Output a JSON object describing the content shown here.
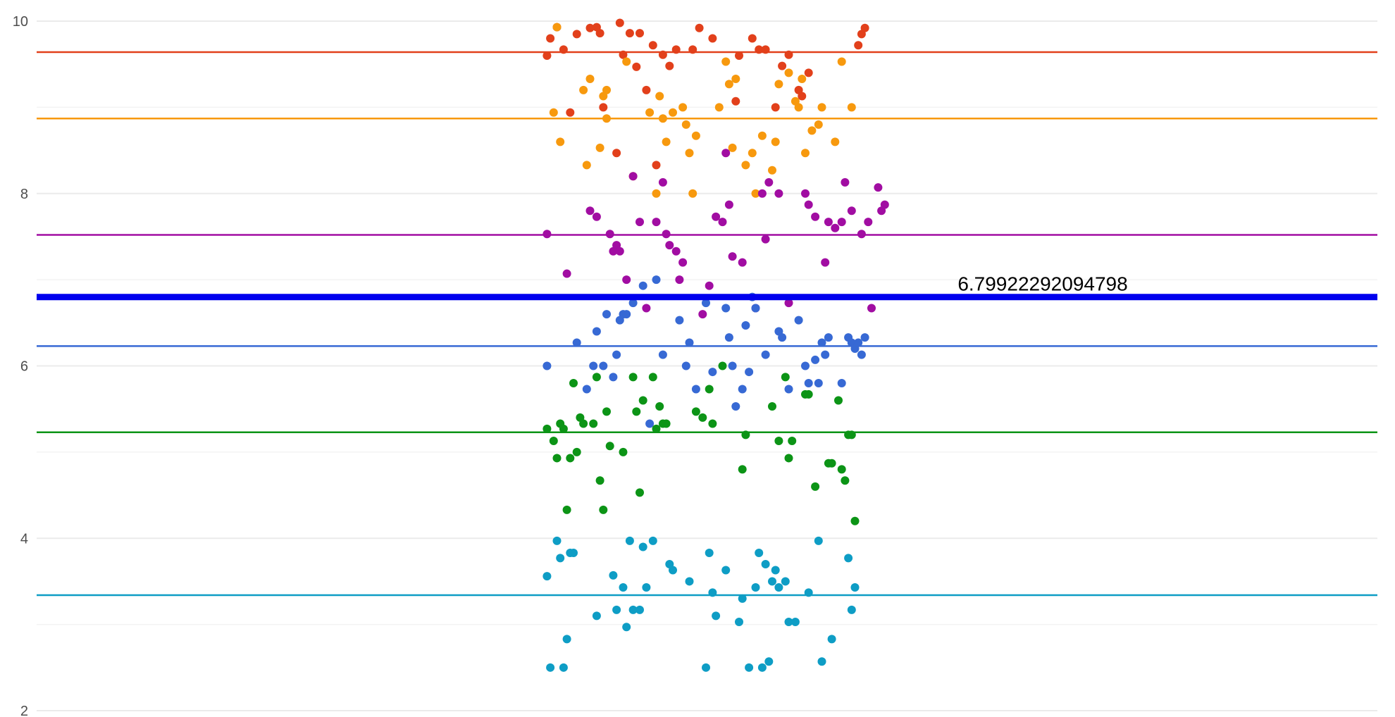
{
  "chart_data": {
    "type": "scatter",
    "title": "",
    "xlabel": "",
    "ylabel": "",
    "ylim": [
      2,
      10
    ],
    "y_ticks": [
      "2",
      "4",
      "6",
      "8",
      "10"
    ],
    "grid": true,
    "legend": "none",
    "reference_line": {
      "value": 6.79922292094798,
      "label": "6.79922292094798",
      "color": "#0000ee"
    },
    "series": [
      {
        "color": "#e2401b",
        "mean": 9.64,
        "points": [
          [
            -0.48,
            9.6
          ],
          [
            -0.47,
            9.8
          ],
          [
            -0.45,
            9.93
          ],
          [
            -0.43,
            9.67
          ],
          [
            -0.41,
            8.94
          ],
          [
            -0.39,
            9.85
          ],
          [
            -0.35,
            9.92
          ],
          [
            -0.33,
            9.93
          ],
          [
            -0.32,
            9.86
          ],
          [
            -0.31,
            9.0
          ],
          [
            -0.27,
            8.47
          ],
          [
            -0.26,
            9.98
          ],
          [
            -0.25,
            9.61
          ],
          [
            -0.23,
            9.86
          ],
          [
            -0.21,
            9.47
          ],
          [
            -0.2,
            9.86
          ],
          [
            -0.18,
            9.2
          ],
          [
            -0.16,
            9.72
          ],
          [
            -0.15,
            8.33
          ],
          [
            -0.13,
            9.61
          ],
          [
            -0.11,
            9.48
          ],
          [
            -0.09,
            9.67
          ],
          [
            -0.04,
            9.67
          ],
          [
            -0.02,
            9.92
          ],
          [
            0.02,
            9.8
          ],
          [
            0.09,
            9.07
          ],
          [
            0.1,
            9.6
          ],
          [
            0.14,
            9.8
          ],
          [
            0.16,
            9.67
          ],
          [
            0.18,
            9.67
          ],
          [
            0.21,
            9.0
          ],
          [
            0.23,
            9.48
          ],
          [
            0.25,
            9.61
          ],
          [
            0.28,
            9.2
          ],
          [
            0.29,
            9.13
          ],
          [
            0.31,
            9.4
          ],
          [
            0.46,
            9.72
          ],
          [
            0.47,
            9.85
          ],
          [
            0.48,
            9.92
          ]
        ]
      },
      {
        "color": "#f7990e",
        "mean": 8.87,
        "points": [
          [
            -0.45,
            9.93
          ],
          [
            -0.46,
            8.94
          ],
          [
            -0.44,
            8.6
          ],
          [
            -0.37,
            9.2
          ],
          [
            -0.36,
            8.33
          ],
          [
            -0.35,
            9.33
          ],
          [
            -0.32,
            8.53
          ],
          [
            -0.31,
            9.13
          ],
          [
            -0.3,
            9.2
          ],
          [
            -0.3,
            8.87
          ],
          [
            -0.24,
            9.53
          ],
          [
            -0.22,
            8.2
          ],
          [
            -0.17,
            8.94
          ],
          [
            -0.15,
            8.0
          ],
          [
            -0.14,
            9.13
          ],
          [
            -0.13,
            8.87
          ],
          [
            -0.12,
            8.6
          ],
          [
            -0.1,
            8.94
          ],
          [
            -0.07,
            9.0
          ],
          [
            -0.06,
            8.8
          ],
          [
            -0.05,
            8.47
          ],
          [
            -0.04,
            8.0
          ],
          [
            -0.03,
            8.67
          ],
          [
            0.04,
            9.0
          ],
          [
            0.06,
            9.53
          ],
          [
            0.07,
            9.27
          ],
          [
            0.08,
            8.53
          ],
          [
            0.09,
            9.33
          ],
          [
            0.12,
            8.33
          ],
          [
            0.14,
            8.47
          ],
          [
            0.15,
            8.0
          ],
          [
            0.17,
            8.67
          ],
          [
            0.2,
            8.27
          ],
          [
            0.21,
            8.6
          ],
          [
            0.22,
            9.27
          ],
          [
            0.25,
            9.4
          ],
          [
            0.27,
            9.07
          ],
          [
            0.28,
            9.0
          ],
          [
            0.29,
            9.33
          ],
          [
            0.3,
            8.47
          ],
          [
            0.32,
            8.73
          ],
          [
            0.34,
            8.8
          ],
          [
            0.35,
            9.0
          ],
          [
            0.39,
            8.6
          ],
          [
            0.41,
            9.53
          ],
          [
            0.44,
            9.0
          ]
        ]
      },
      {
        "color": "#a10da2",
        "mean": 7.52,
        "points": [
          [
            -0.48,
            7.53
          ],
          [
            -0.42,
            7.07
          ],
          [
            -0.35,
            7.8
          ],
          [
            -0.33,
            7.73
          ],
          [
            -0.29,
            7.53
          ],
          [
            -0.28,
            7.33
          ],
          [
            -0.27,
            7.4
          ],
          [
            -0.26,
            7.33
          ],
          [
            -0.24,
            7.0
          ],
          [
            -0.22,
            8.2
          ],
          [
            -0.2,
            7.67
          ],
          [
            -0.18,
            6.67
          ],
          [
            -0.15,
            7.67
          ],
          [
            -0.13,
            8.13
          ],
          [
            -0.12,
            7.53
          ],
          [
            -0.11,
            7.4
          ],
          [
            -0.09,
            7.33
          ],
          [
            -0.08,
            7.0
          ],
          [
            -0.07,
            7.2
          ],
          [
            -0.01,
            6.6
          ],
          [
            0.01,
            6.93
          ],
          [
            0.03,
            7.73
          ],
          [
            0.05,
            7.67
          ],
          [
            0.06,
            8.47
          ],
          [
            0.07,
            7.87
          ],
          [
            0.08,
            7.27
          ],
          [
            0.11,
            7.2
          ],
          [
            0.15,
            6.67
          ],
          [
            0.17,
            8.0
          ],
          [
            0.18,
            7.47
          ],
          [
            0.19,
            8.13
          ],
          [
            0.22,
            8.0
          ],
          [
            0.25,
            6.73
          ],
          [
            0.3,
            8.0
          ],
          [
            0.31,
            7.87
          ],
          [
            0.33,
            7.73
          ],
          [
            0.36,
            7.2
          ],
          [
            0.37,
            7.67
          ],
          [
            0.39,
            7.6
          ],
          [
            0.41,
            7.67
          ],
          [
            0.42,
            8.13
          ],
          [
            0.44,
            7.8
          ],
          [
            0.47,
            7.53
          ],
          [
            0.49,
            7.67
          ],
          [
            0.5,
            6.67
          ],
          [
            0.52,
            8.07
          ],
          [
            0.53,
            7.8
          ],
          [
            0.54,
            7.87
          ]
        ]
      },
      {
        "color": "#3769d4",
        "mean": 6.23,
        "points": [
          [
            -0.48,
            6.0
          ],
          [
            -0.39,
            6.27
          ],
          [
            -0.36,
            5.73
          ],
          [
            -0.34,
            6.0
          ],
          [
            -0.33,
            6.4
          ],
          [
            -0.31,
            6.0
          ],
          [
            -0.3,
            6.6
          ],
          [
            -0.28,
            5.87
          ],
          [
            -0.27,
            6.13
          ],
          [
            -0.26,
            6.53
          ],
          [
            -0.25,
            6.6
          ],
          [
            -0.24,
            6.6
          ],
          [
            -0.22,
            6.73
          ],
          [
            -0.19,
            6.93
          ],
          [
            -0.17,
            5.33
          ],
          [
            -0.15,
            7.0
          ],
          [
            -0.13,
            6.13
          ],
          [
            -0.08,
            6.53
          ],
          [
            -0.06,
            6.0
          ],
          [
            -0.05,
            6.27
          ],
          [
            -0.03,
            5.73
          ],
          [
            0.0,
            6.73
          ],
          [
            0.02,
            5.93
          ],
          [
            0.06,
            6.67
          ],
          [
            0.07,
            6.33
          ],
          [
            0.08,
            6.0
          ],
          [
            0.09,
            5.53
          ],
          [
            0.11,
            5.73
          ],
          [
            0.12,
            6.47
          ],
          [
            0.13,
            5.93
          ],
          [
            0.14,
            6.8
          ],
          [
            0.15,
            6.67
          ],
          [
            0.18,
            6.13
          ],
          [
            0.22,
            6.4
          ],
          [
            0.23,
            6.33
          ],
          [
            0.25,
            5.73
          ],
          [
            0.28,
            6.53
          ],
          [
            0.3,
            6.0
          ],
          [
            0.31,
            5.8
          ],
          [
            0.33,
            6.07
          ],
          [
            0.34,
            5.8
          ],
          [
            0.35,
            6.27
          ],
          [
            0.36,
            6.13
          ],
          [
            0.37,
            6.33
          ],
          [
            0.41,
            5.8
          ],
          [
            0.43,
            6.33
          ],
          [
            0.44,
            6.27
          ],
          [
            0.45,
            6.2
          ],
          [
            0.46,
            6.27
          ],
          [
            0.47,
            6.13
          ],
          [
            0.48,
            6.33
          ]
        ]
      },
      {
        "color": "#0c9416",
        "mean": 5.23,
        "points": [
          [
            -0.48,
            5.27
          ],
          [
            -0.46,
            5.13
          ],
          [
            -0.45,
            4.93
          ],
          [
            -0.44,
            5.33
          ],
          [
            -0.43,
            5.27
          ],
          [
            -0.42,
            4.33
          ],
          [
            -0.41,
            4.93
          ],
          [
            -0.4,
            5.8
          ],
          [
            -0.39,
            5.0
          ],
          [
            -0.38,
            5.4
          ],
          [
            -0.37,
            5.33
          ],
          [
            -0.34,
            5.33
          ],
          [
            -0.33,
            5.87
          ],
          [
            -0.32,
            4.67
          ],
          [
            -0.31,
            4.33
          ],
          [
            -0.3,
            5.47
          ],
          [
            -0.29,
            5.07
          ],
          [
            -0.25,
            5.0
          ],
          [
            -0.22,
            5.87
          ],
          [
            -0.21,
            5.47
          ],
          [
            -0.2,
            4.53
          ],
          [
            -0.19,
            5.6
          ],
          [
            -0.16,
            5.87
          ],
          [
            -0.15,
            5.27
          ],
          [
            -0.14,
            5.53
          ],
          [
            -0.13,
            5.33
          ],
          [
            -0.12,
            5.33
          ],
          [
            -0.03,
            5.47
          ],
          [
            -0.01,
            5.4
          ],
          [
            0.01,
            5.73
          ],
          [
            0.02,
            5.33
          ],
          [
            0.05,
            6.0
          ],
          [
            0.11,
            4.8
          ],
          [
            0.12,
            5.2
          ],
          [
            0.2,
            5.53
          ],
          [
            0.22,
            5.13
          ],
          [
            0.24,
            5.87
          ],
          [
            0.25,
            4.93
          ],
          [
            0.26,
            5.13
          ],
          [
            0.3,
            5.67
          ],
          [
            0.31,
            5.67
          ],
          [
            0.33,
            4.6
          ],
          [
            0.37,
            4.87
          ],
          [
            0.38,
            4.87
          ],
          [
            0.4,
            5.6
          ],
          [
            0.41,
            4.8
          ],
          [
            0.42,
            4.67
          ],
          [
            0.43,
            5.2
          ],
          [
            0.44,
            5.2
          ],
          [
            0.45,
            4.2
          ]
        ]
      },
      {
        "color": "#0e9dc5",
        "mean": 3.34,
        "points": [
          [
            -0.48,
            3.56
          ],
          [
            -0.47,
            2.5
          ],
          [
            -0.45,
            3.97
          ],
          [
            -0.44,
            3.77
          ],
          [
            -0.43,
            2.5
          ],
          [
            -0.42,
            2.83
          ],
          [
            -0.41,
            3.83
          ],
          [
            -0.4,
            3.83
          ],
          [
            -0.33,
            3.1
          ],
          [
            -0.28,
            3.57
          ],
          [
            -0.27,
            3.17
          ],
          [
            -0.25,
            3.43
          ],
          [
            -0.24,
            2.97
          ],
          [
            -0.23,
            3.97
          ],
          [
            -0.22,
            3.17
          ],
          [
            -0.2,
            3.17
          ],
          [
            -0.19,
            3.9
          ],
          [
            -0.18,
            3.43
          ],
          [
            -0.16,
            3.97
          ],
          [
            -0.11,
            3.7
          ],
          [
            -0.1,
            3.63
          ],
          [
            -0.05,
            3.5
          ],
          [
            0.0,
            2.5
          ],
          [
            0.01,
            3.83
          ],
          [
            0.02,
            3.37
          ],
          [
            0.03,
            3.1
          ],
          [
            0.06,
            3.63
          ],
          [
            0.1,
            3.03
          ],
          [
            0.11,
            3.3
          ],
          [
            0.13,
            2.5
          ],
          [
            0.15,
            3.43
          ],
          [
            0.16,
            3.83
          ],
          [
            0.17,
            2.5
          ],
          [
            0.18,
            3.7
          ],
          [
            0.19,
            2.57
          ],
          [
            0.2,
            3.5
          ],
          [
            0.21,
            3.63
          ],
          [
            0.22,
            3.43
          ],
          [
            0.24,
            3.5
          ],
          [
            0.25,
            3.03
          ],
          [
            0.27,
            3.03
          ],
          [
            0.31,
            3.37
          ],
          [
            0.34,
            3.97
          ],
          [
            0.35,
            2.57
          ],
          [
            0.38,
            2.83
          ],
          [
            0.43,
            3.77
          ],
          [
            0.44,
            3.17
          ],
          [
            0.45,
            3.43
          ]
        ]
      }
    ]
  }
}
